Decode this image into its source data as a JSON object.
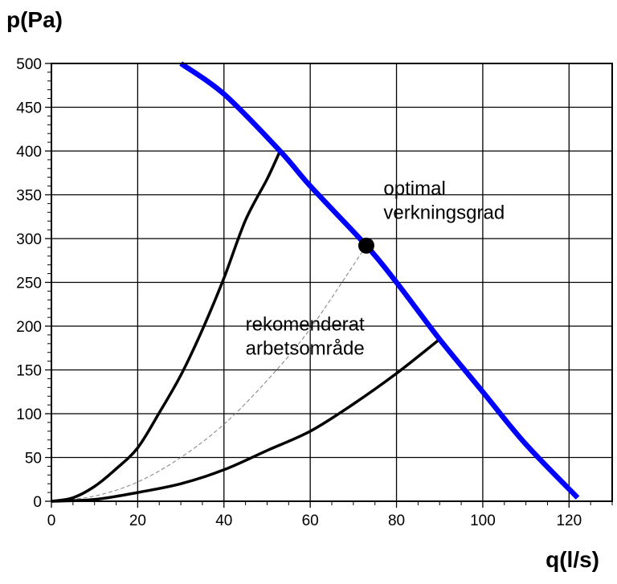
{
  "chart_data": {
    "type": "line",
    "title": "",
    "ylabel": "p(Pa)",
    "xlabel": "q(l/s)",
    "xlim": [
      0,
      130
    ],
    "ylim": [
      0,
      500
    ],
    "x_ticks": [
      0,
      20,
      40,
      60,
      80,
      100,
      120
    ],
    "y_ticks": [
      0,
      50,
      100,
      150,
      200,
      250,
      300,
      350,
      400,
      450,
      500
    ],
    "grid": true,
    "colors": {
      "fan_curve": "#0000ff",
      "system": "#000000",
      "optimal": "#808080"
    },
    "series": [
      {
        "role": "fan_curve",
        "x": [
          30,
          40,
          53,
          60,
          73,
          80,
          90,
          100,
          110,
          122
        ],
        "y": [
          500,
          465,
          400,
          360,
          292,
          250,
          185,
          125,
          65,
          4
        ]
      },
      {
        "role": "system_upper",
        "x": [
          0,
          5,
          10,
          15,
          20,
          25,
          30,
          35,
          40,
          45,
          50,
          53
        ],
        "y": [
          0,
          4,
          17,
          37,
          61,
          101,
          144,
          196,
          255,
          321,
          368,
          400
        ]
      },
      {
        "role": "system_optimal",
        "x": [
          0,
          10,
          20,
          30,
          40,
          50,
          60,
          73
        ],
        "y": [
          0,
          6,
          22,
          50,
          88,
          138,
          197,
          292
        ]
      },
      {
        "role": "system_lower",
        "x": [
          0,
          10,
          20,
          30,
          40,
          50,
          60,
          70,
          80,
          90
        ],
        "y": [
          0,
          2,
          10,
          20,
          36,
          58,
          80,
          111,
          146,
          185
        ]
      }
    ],
    "optimal_point": {
      "x": 73,
      "y": 292
    },
    "annotations": [
      {
        "lines": [
          "optimal",
          "verkningsgrad"
        ],
        "x": 77,
        "y": 350
      },
      {
        "lines": [
          "rekomenderat",
          "arbetsområde"
        ],
        "x": 45,
        "y": 195
      }
    ]
  }
}
